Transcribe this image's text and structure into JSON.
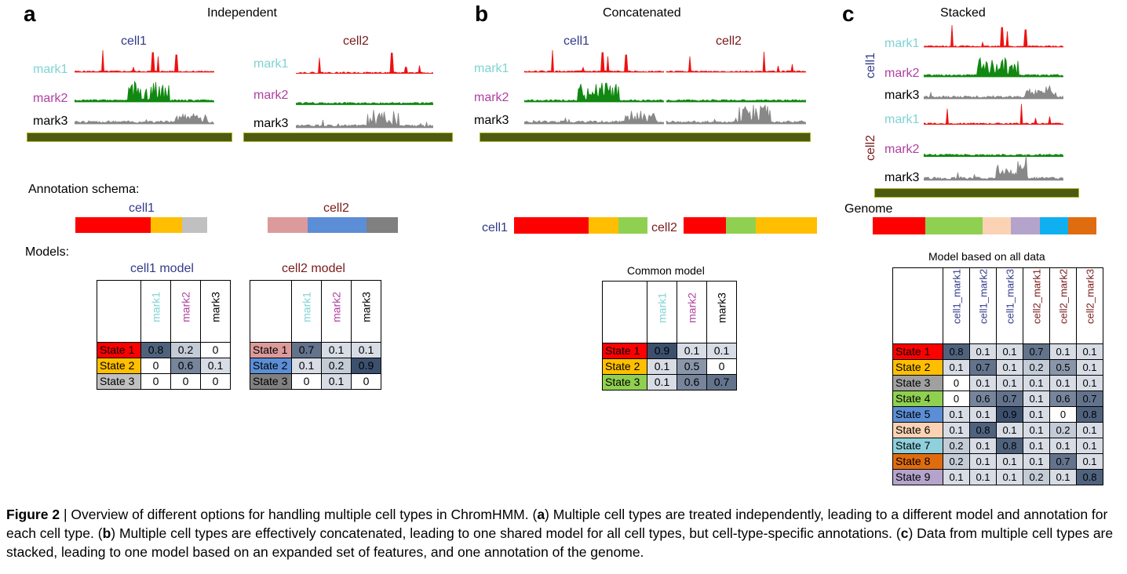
{
  "colors": {
    "mark1": "#7fd3d3",
    "mark2": "#b040a0",
    "mark3": "#000000",
    "cell1": "#333a8c",
    "cell2": "#7a1a1a",
    "mark1_track": "#ee1111",
    "mark2_track": "#118811",
    "mark3_track": "#888888",
    "genome_bar": "#4d5a12"
  },
  "panel_a": {
    "label": "a",
    "title": "Independent",
    "cells": [
      {
        "name": "cell1"
      },
      {
        "name": "cell2"
      }
    ],
    "marks": [
      "mark1",
      "mark2",
      "mark3"
    ],
    "annotation_label": "Annotation schema:",
    "schema": [
      {
        "name": "cell1",
        "segments": [
          {
            "color": "#ff0000",
            "frac": 0.57
          },
          {
            "color": "#ffbf00",
            "frac": 0.24
          },
          {
            "color": "#c0c0c0",
            "frac": 0.19
          }
        ]
      },
      {
        "name": "cell2",
        "segments": [
          {
            "color": "#dc9a9a",
            "frac": 0.31
          },
          {
            "color": "#5b8ed6",
            "frac": 0.45
          },
          {
            "color": "#808080",
            "frac": 0.24
          }
        ]
      }
    ],
    "models_label": "Models:",
    "models": [
      {
        "title": "cell1 model",
        "cols": [
          "mark1",
          "mark2",
          "mark3"
        ],
        "rows": [
          {
            "state": "State 1",
            "color": "#ff0000",
            "values": [
              "0.8",
              "0.2",
              "0"
            ]
          },
          {
            "state": "State 2",
            "color": "#ffbf00",
            "values": [
              "0",
              "0.6",
              "0.1"
            ]
          },
          {
            "state": "State 3",
            "color": "#c0c0c0",
            "values": [
              "0",
              "0",
              "0"
            ]
          }
        ]
      },
      {
        "title": "cell2 model",
        "cols": [
          "mark1",
          "mark2",
          "mark3"
        ],
        "rows": [
          {
            "state": "State 1",
            "color": "#dc9a9a",
            "values": [
              "0.7",
              "0.1",
              "0.1"
            ]
          },
          {
            "state": "State 2",
            "color": "#5b8ed6",
            "values": [
              "0.1",
              "0.2",
              "0.9"
            ]
          },
          {
            "state": "State 3",
            "color": "#808080",
            "values": [
              "0",
              "0.1",
              "0"
            ]
          }
        ]
      }
    ]
  },
  "panel_b": {
    "label": "b",
    "title": "Concatenated",
    "cells": [
      {
        "name": "cell1"
      },
      {
        "name": "cell2"
      }
    ],
    "marks": [
      "mark1",
      "mark2",
      "mark3"
    ],
    "schema": [
      {
        "name": "cell1",
        "segments": [
          {
            "color": "#ff0000",
            "frac": 0.56
          },
          {
            "color": "#ffbf00",
            "frac": 0.22
          },
          {
            "color": "#90d050",
            "frac": 0.22
          }
        ]
      },
      {
        "name": "cell2",
        "segments": [
          {
            "color": "#ff0000",
            "frac": 0.32
          },
          {
            "color": "#90d050",
            "frac": 0.22
          },
          {
            "color": "#ffbf00",
            "frac": 0.46
          }
        ]
      }
    ],
    "model": {
      "title": "Common model",
      "cols": [
        "mark1",
        "mark2",
        "mark3"
      ],
      "rows": [
        {
          "state": "State 1",
          "color": "#ff0000",
          "values": [
            "0.9",
            "0.1",
            "0.1"
          ]
        },
        {
          "state": "State 2",
          "color": "#ffbf00",
          "values": [
            "0.1",
            "0.5",
            "0"
          ]
        },
        {
          "state": "State 3",
          "color": "#90d050",
          "values": [
            "0.1",
            "0.6",
            "0.7"
          ]
        }
      ]
    }
  },
  "panel_c": {
    "label": "c",
    "title": "Stacked",
    "cells": [
      {
        "name": "cell1"
      },
      {
        "name": "cell2"
      }
    ],
    "marks": [
      "mark1",
      "mark2",
      "mark3"
    ],
    "genome_label": "Genome",
    "schema": [
      {
        "color": "#ff0000",
        "frac": 0.235
      },
      {
        "color": "#90d050",
        "frac": 0.255
      },
      {
        "color": "#fbd3b4",
        "frac": 0.128
      },
      {
        "color": "#b4a4cc",
        "frac": 0.128
      },
      {
        "color": "#10b0f0",
        "frac": 0.127
      },
      {
        "color": "#e06c10",
        "frac": 0.127
      }
    ],
    "model": {
      "title": "Model based on all data",
      "cols": [
        {
          "label": "cell1_mark1",
          "cell": "cell1",
          "mark": "mark1"
        },
        {
          "label": "cell1_mark2",
          "cell": "cell1",
          "mark": "mark2"
        },
        {
          "label": "cell1_mark3",
          "cell": "cell1",
          "mark": "mark3"
        },
        {
          "label": "cell2_mark1",
          "cell": "cell2",
          "mark": "mark1"
        },
        {
          "label": "cell2_mark2",
          "cell": "cell2",
          "mark": "mark2"
        },
        {
          "label": "cell2_mark3",
          "cell": "cell2",
          "mark": "mark3"
        }
      ],
      "rows": [
        {
          "state": "State 1",
          "color": "#ff0000",
          "values": [
            "0.8",
            "0.1",
            "0.1",
            "0.7",
            "0.1",
            "0.1"
          ]
        },
        {
          "state": "State 2",
          "color": "#ffbf00",
          "values": [
            "0.1",
            "0.7",
            "0.1",
            "0.2",
            "0.5",
            "0.1"
          ]
        },
        {
          "state": "State 3",
          "color": "#a0a0a0",
          "values": [
            "0",
            "0.1",
            "0.1",
            "0.1",
            "0.1",
            "0.1"
          ]
        },
        {
          "state": "State 4",
          "color": "#90d050",
          "values": [
            "0",
            "0.6",
            "0.7",
            "0.1",
            "0.6",
            "0.7"
          ]
        },
        {
          "state": "State 5",
          "color": "#5b8ed6",
          "values": [
            "0.1",
            "0.1",
            "0.9",
            "0.1",
            "0",
            "0.8"
          ]
        },
        {
          "state": "State 6",
          "color": "#fbd3b4",
          "values": [
            "0.1",
            "0.8",
            "0.1",
            "0.1",
            "0.2",
            "0.1"
          ]
        },
        {
          "state": "State 7",
          "color": "#8fd0dc",
          "values": [
            "0.2",
            "0.1",
            "0.8",
            "0.1",
            "0.1",
            "0.1"
          ]
        },
        {
          "state": "State 8",
          "color": "#e06c10",
          "values": [
            "0.2",
            "0.1",
            "0.1",
            "0.1",
            "0.7",
            "0.1"
          ]
        },
        {
          "state": "State 9",
          "color": "#b4a4cc",
          "values": [
            "0.1",
            "0.1",
            "0.1",
            "0.2",
            "0.1",
            "0.8"
          ]
        }
      ]
    }
  },
  "caption": {
    "figure_number": "Figure 2",
    "separator": " | ",
    "parts": [
      {
        "t": "Overview of different options for handling multiple cell types in ChromHMM. (",
        "b": false
      },
      {
        "t": "a",
        "b": true
      },
      {
        "t": ") Multiple cell types are treated independently, leading to a different model and annotation for each cell type. (",
        "b": false
      },
      {
        "t": "b",
        "b": true
      },
      {
        "t": ") Multiple cell types are effectively concatenated, leading to one shared model for all cell types, but cell-type-specific annotations. (",
        "b": false
      },
      {
        "t": "c",
        "b": true
      },
      {
        "t": ") Data from multiple cell types are stacked, leading to one model based on an expanded set of features, and one annotation of the genome.",
        "b": false
      }
    ]
  }
}
